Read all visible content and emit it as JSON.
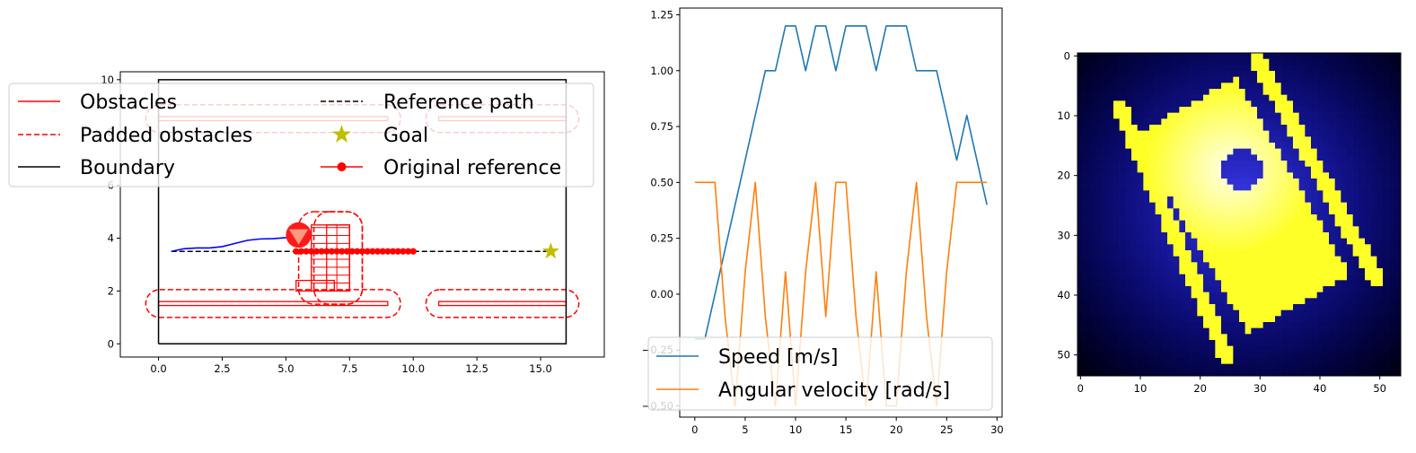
{
  "chart_data": [
    {
      "type": "line",
      "title": "",
      "xlabel": "",
      "ylabel": "",
      "xlim": [
        -1.5,
        17.5
      ],
      "ylim": [
        -0.5,
        10.3
      ],
      "xticks": [
        "0.0",
        "2.5",
        "5.0",
        "7.5",
        "10.0",
        "12.5",
        "15.0"
      ],
      "xtick_values": [
        0,
        2.5,
        5,
        7.5,
        10,
        12.5,
        15
      ],
      "yticks": [
        "0",
        "2",
        "4",
        "6",
        "8",
        "10"
      ],
      "ytick_values": [
        0,
        2,
        4,
        6,
        8,
        10
      ],
      "grid": false,
      "legend_placement": "upper-left (extends beyond axes)",
      "legend": [
        {
          "label": "Obstacles",
          "style": "solid",
          "color": "#ff0000"
        },
        {
          "label": "Reference path",
          "style": "dashed",
          "color": "#000000"
        },
        {
          "label": "Padded obstacles",
          "style": "dashed",
          "color": "#ff0000"
        },
        {
          "label": "Goal",
          "style": "star",
          "color": "#bfbf00"
        },
        {
          "label": "Boundary",
          "style": "solid",
          "color": "#000000"
        },
        {
          "label": "Original reference",
          "style": "line-dot",
          "color": "#ff0000"
        }
      ],
      "boundary": [
        [
          0,
          0
        ],
        [
          16,
          0
        ],
        [
          16,
          10
        ],
        [
          0,
          10
        ],
        [
          0,
          0
        ]
      ],
      "reference_path": [
        [
          0.5,
          3.5
        ],
        [
          15.4,
          3.5
        ]
      ],
      "goal": [
        15.4,
        3.5
      ],
      "original_reference": {
        "y": 3.5,
        "x_start": 5.4,
        "x_end": 10.0,
        "step": 0.2
      },
      "trajectory": [
        [
          0.5,
          3.5
        ],
        [
          1.0,
          3.6
        ],
        [
          1.5,
          3.63
        ],
        [
          2.0,
          3.63
        ],
        [
          2.5,
          3.68
        ],
        [
          3.0,
          3.8
        ],
        [
          3.5,
          3.92
        ],
        [
          4.0,
          3.97
        ],
        [
          4.5,
          3.98
        ],
        [
          5.0,
          4.02
        ],
        [
          5.5,
          4.12
        ]
      ],
      "robot": {
        "x": 5.5,
        "y": 4.12,
        "radius": 0.5
      },
      "obstacles": [
        {
          "x0": 0,
          "x1": 9,
          "y0": 1.45,
          "y1": 1.6
        },
        {
          "x0": 11,
          "x1": 16,
          "y0": 1.45,
          "y1": 1.6
        },
        {
          "x0": 0,
          "x1": 9,
          "y0": 8.45,
          "y1": 8.6
        },
        {
          "x0": 11,
          "x1": 16,
          "y0": 8.45,
          "y1": 8.6
        },
        {
          "x0": 6.0,
          "x1": 7.5,
          "y0": 2.0,
          "y1": 4.5
        },
        {
          "x0": 5.4,
          "x1": 6.9,
          "y0": 2.0,
          "y1": 2.4
        },
        {
          "x0": 6.6,
          "x1": 7.5,
          "y0": 2.0,
          "y1": 4.5
        }
      ],
      "padded_obstacles": [
        {
          "x0": -0.5,
          "x1": 9.5,
          "y0": 1.0,
          "y1": 2.05
        },
        {
          "x0": 10.5,
          "x1": 16.5,
          "y0": 1.0,
          "y1": 2.05
        },
        {
          "x0": -0.5,
          "x1": 9.5,
          "y0": 8.0,
          "y1": 9.05
        },
        {
          "x0": 10.5,
          "x1": 16.5,
          "y0": 8.0,
          "y1": 9.05
        },
        {
          "x0": 5.5,
          "x1": 8.0,
          "y0": 1.5,
          "y1": 5.0
        },
        {
          "x0": 6.1,
          "x1": 8.0,
          "y0": 1.5,
          "y1": 5.0
        }
      ]
    },
    {
      "type": "line",
      "title": "",
      "xlabel": "",
      "ylabel": "",
      "xlim": [
        -1.5,
        30.5
      ],
      "ylim": [
        -0.55,
        1.28
      ],
      "xticks": [
        "0",
        "5",
        "10",
        "15",
        "20",
        "25",
        "30"
      ],
      "xtick_values": [
        0,
        5,
        10,
        15,
        20,
        25,
        30
      ],
      "yticks": [
        "−0.50",
        "−0.25",
        "0.00",
        "0.25",
        "0.50",
        "0.75",
        "1.00",
        "1.25"
      ],
      "ytick_values": [
        -0.5,
        -0.25,
        0,
        0.25,
        0.5,
        0.75,
        1.0,
        1.25
      ],
      "grid": false,
      "legend_placement": "lower-left",
      "x": [
        0,
        1,
        2,
        3,
        4,
        5,
        6,
        7,
        8,
        9,
        10,
        11,
        12,
        13,
        14,
        15,
        16,
        17,
        18,
        19,
        20,
        21,
        22,
        23,
        24,
        25,
        26,
        27,
        28,
        29
      ],
      "series": [
        {
          "name": "Speed [m/s]",
          "color": "#1f77b4",
          "values": [
            -0.2,
            -0.2,
            0.0,
            0.2,
            0.4,
            0.6,
            0.8,
            1.0,
            1.0,
            1.2,
            1.2,
            1.0,
            1.2,
            1.2,
            1.0,
            1.2,
            1.2,
            1.2,
            1.0,
            1.2,
            1.2,
            1.2,
            1.0,
            1.0,
            1.0,
            0.8,
            0.6,
            0.8,
            0.6,
            0.4
          ]
        },
        {
          "name": "Angular velocity [rad/s]",
          "color": "#ff7f0e",
          "values": [
            0.5,
            0.5,
            0.5,
            -0.1,
            -0.5,
            0.1,
            0.5,
            -0.1,
            -0.5,
            0.1,
            -0.5,
            0.1,
            0.5,
            -0.1,
            0.5,
            0.5,
            -0.1,
            -0.5,
            0.1,
            -0.5,
            -0.5,
            0.1,
            0.5,
            -0.1,
            -0.5,
            0.1,
            0.5,
            0.5,
            0.5,
            0.5
          ]
        }
      ]
    },
    {
      "type": "heatmap",
      "title": "",
      "xlabel": "",
      "ylabel": "",
      "xticks": [
        "0",
        "10",
        "20",
        "30",
        "40",
        "50"
      ],
      "yticks": [
        "0",
        "10",
        "20",
        "30",
        "40",
        "50"
      ],
      "tick_values": [
        0,
        10,
        20,
        30,
        40,
        50
      ],
      "extent": [
        0,
        54,
        0,
        54
      ],
      "colors": {
        "low": "#000000",
        "mid": "#0000ff",
        "high": "#ffff00",
        "peak": "#ffffff"
      },
      "rect": {
        "cx": 27.5,
        "cy": 25.5,
        "half_len": 19,
        "half_wid": 9.8,
        "angle_deg": -60
      },
      "cutout": {
        "x": 27.5,
        "y": 19.5,
        "r": 3.2
      },
      "stripes": [
        {
          "x0": 7,
          "y0": 9,
          "x1": 25,
          "y1": 51,
          "w": 1.3
        },
        {
          "x0": 30,
          "y0": 1,
          "x1": 50,
          "y1": 38,
          "w": 1.3
        }
      ]
    }
  ]
}
